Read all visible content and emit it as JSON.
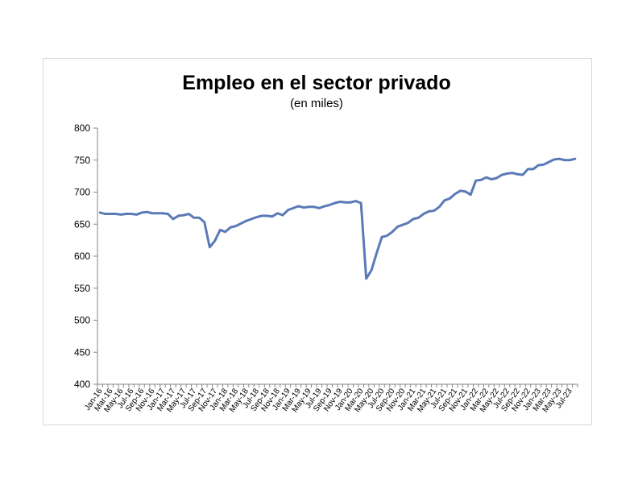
{
  "chart_data": {
    "type": "line",
    "title": "Empleo en el sector privado",
    "subtitle": "(en miles)",
    "xlabel": "",
    "ylabel": "",
    "ylim": [
      400,
      800
    ],
    "yticks": [
      400,
      450,
      500,
      550,
      600,
      650,
      700,
      750,
      800
    ],
    "grid": false,
    "legend": "none",
    "line_color": "#5a7ab7",
    "x": [
      "Jan-16",
      "Feb-16",
      "Mar-16",
      "Apr-16",
      "May-16",
      "Jun-16",
      "Jul-16",
      "Aug-16",
      "Sep-16",
      "Oct-16",
      "Nov-16",
      "Dec-16",
      "Jan-17",
      "Feb-17",
      "Mar-17",
      "Apr-17",
      "May-17",
      "Jun-17",
      "Jul-17",
      "Aug-17",
      "Sep-17",
      "Oct-17",
      "Nov-17",
      "Dec-17",
      "Jan-18",
      "Feb-18",
      "Mar-18",
      "Apr-18",
      "May-18",
      "Jun-18",
      "Jul-18",
      "Aug-18",
      "Sep-18",
      "Oct-18",
      "Nov-18",
      "Dec-18",
      "Jan-19",
      "Feb-19",
      "Mar-19",
      "Apr-19",
      "May-19",
      "Jun-19",
      "Jul-19",
      "Aug-19",
      "Sep-19",
      "Oct-19",
      "Nov-19",
      "Dec-19",
      "Jan-20",
      "Feb-20",
      "Mar-20",
      "Apr-20",
      "May-20",
      "Jun-20",
      "Jul-20",
      "Aug-20",
      "Sep-20",
      "Oct-20",
      "Nov-20",
      "Dec-20",
      "Jan-21",
      "Feb-21",
      "Mar-21",
      "Apr-21",
      "May-21",
      "Jun-21",
      "Jul-21",
      "Aug-21",
      "Sep-21",
      "Oct-21",
      "Nov-21",
      "Dec-21",
      "Jan-22",
      "Feb-22",
      "Mar-22",
      "Apr-22",
      "May-22",
      "Jun-22",
      "Jul-22",
      "Aug-22",
      "Sep-22",
      "Oct-22",
      "Nov-22",
      "Dec-22",
      "Jan-23",
      "Feb-23",
      "Mar-23",
      "Apr-23",
      "May-23",
      "Jun-23",
      "Jul-23",
      "Aug-23"
    ],
    "tick_labels": [
      "Jan-16",
      "Mar-16",
      "May-16",
      "Jul-16",
      "Sep-16",
      "Nov-16",
      "Jan-17",
      "Mar-17",
      "May-17",
      "Jul-17",
      "Sep-17",
      "Nov-17",
      "Jan-18",
      "Mar-18",
      "May-18",
      "Jul-18",
      "Sep-18",
      "Nov-18",
      "Jan-19",
      "Mar-19",
      "May-19",
      "Jul-19",
      "Sep-19",
      "Nov-19",
      "Jan-20",
      "Mar-20",
      "May-20",
      "Jul-20",
      "Sep-20",
      "Nov-20",
      "Jan-21",
      "Mar-21",
      "May-21",
      "Jul-21",
      "Sep-21",
      "Nov-21",
      "Jan-22",
      "Mar-22",
      "May-22",
      "Jul-22",
      "Sep-22",
      "Nov-22",
      "Jan-23",
      "Mar-23",
      "May-23",
      "Jul-23"
    ],
    "series": [
      {
        "values": [
          668,
          666,
          666,
          666,
          665,
          666,
          666,
          665,
          668,
          669,
          667,
          667,
          667,
          666,
          658,
          663,
          664,
          666,
          660,
          660,
          653,
          614,
          624,
          641,
          638,
          645,
          647,
          651,
          655,
          658,
          661,
          663,
          663,
          662,
          667,
          664,
          672,
          675,
          678,
          676,
          677,
          677,
          675,
          678,
          680,
          683,
          685,
          684,
          684,
          686,
          683,
          565,
          578,
          605,
          630,
          632,
          638,
          646,
          649,
          652,
          658,
          660,
          666,
          670,
          671,
          677,
          687,
          690,
          697,
          702,
          701,
          696,
          718,
          719,
          723,
          720,
          722,
          727,
          729,
          730,
          728,
          727,
          736,
          736,
          742,
          743,
          747,
          751,
          752,
          750,
          750,
          752
        ]
      }
    ]
  }
}
